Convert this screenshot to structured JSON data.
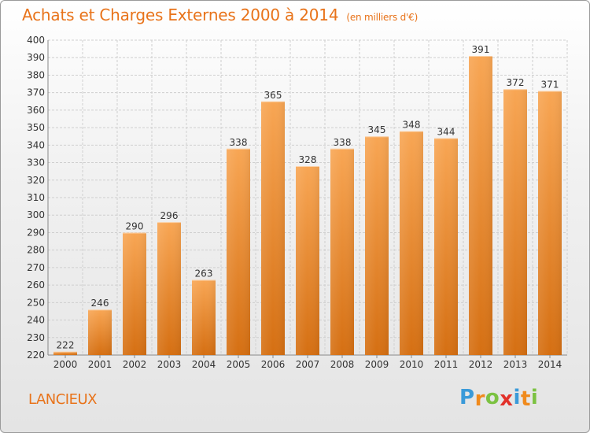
{
  "header": {
    "title": "Achats et Charges Externes 2000 à 2014",
    "unit": "(en milliers d'€)"
  },
  "footer": {
    "commune": "LANCIEUX",
    "logo_letters": [
      "P",
      "r",
      "o",
      "x",
      "i",
      "t",
      "i"
    ],
    "logo_colors": [
      "#3a9ad9",
      "#f08a1c",
      "#7cc242",
      "#e2312a",
      "#3a9ad9",
      "#f08a1c",
      "#7cc242"
    ]
  },
  "colors": {
    "bar_top": "#f8a654",
    "bar_bottom": "#d56f12",
    "title": "#e8731a"
  },
  "chart_data": {
    "type": "bar",
    "categories": [
      "2000",
      "2001",
      "2002",
      "2003",
      "2004",
      "2005",
      "2006",
      "2007",
      "2008",
      "2009",
      "2010",
      "2011",
      "2012",
      "2013",
      "2014"
    ],
    "values": [
      222,
      246,
      290,
      296,
      263,
      338,
      365,
      328,
      338,
      345,
      348,
      344,
      391,
      372,
      371
    ],
    "ylim": [
      220,
      400
    ],
    "ytick_step": 10,
    "grid": true,
    "xlabel": "",
    "ylabel": ""
  }
}
